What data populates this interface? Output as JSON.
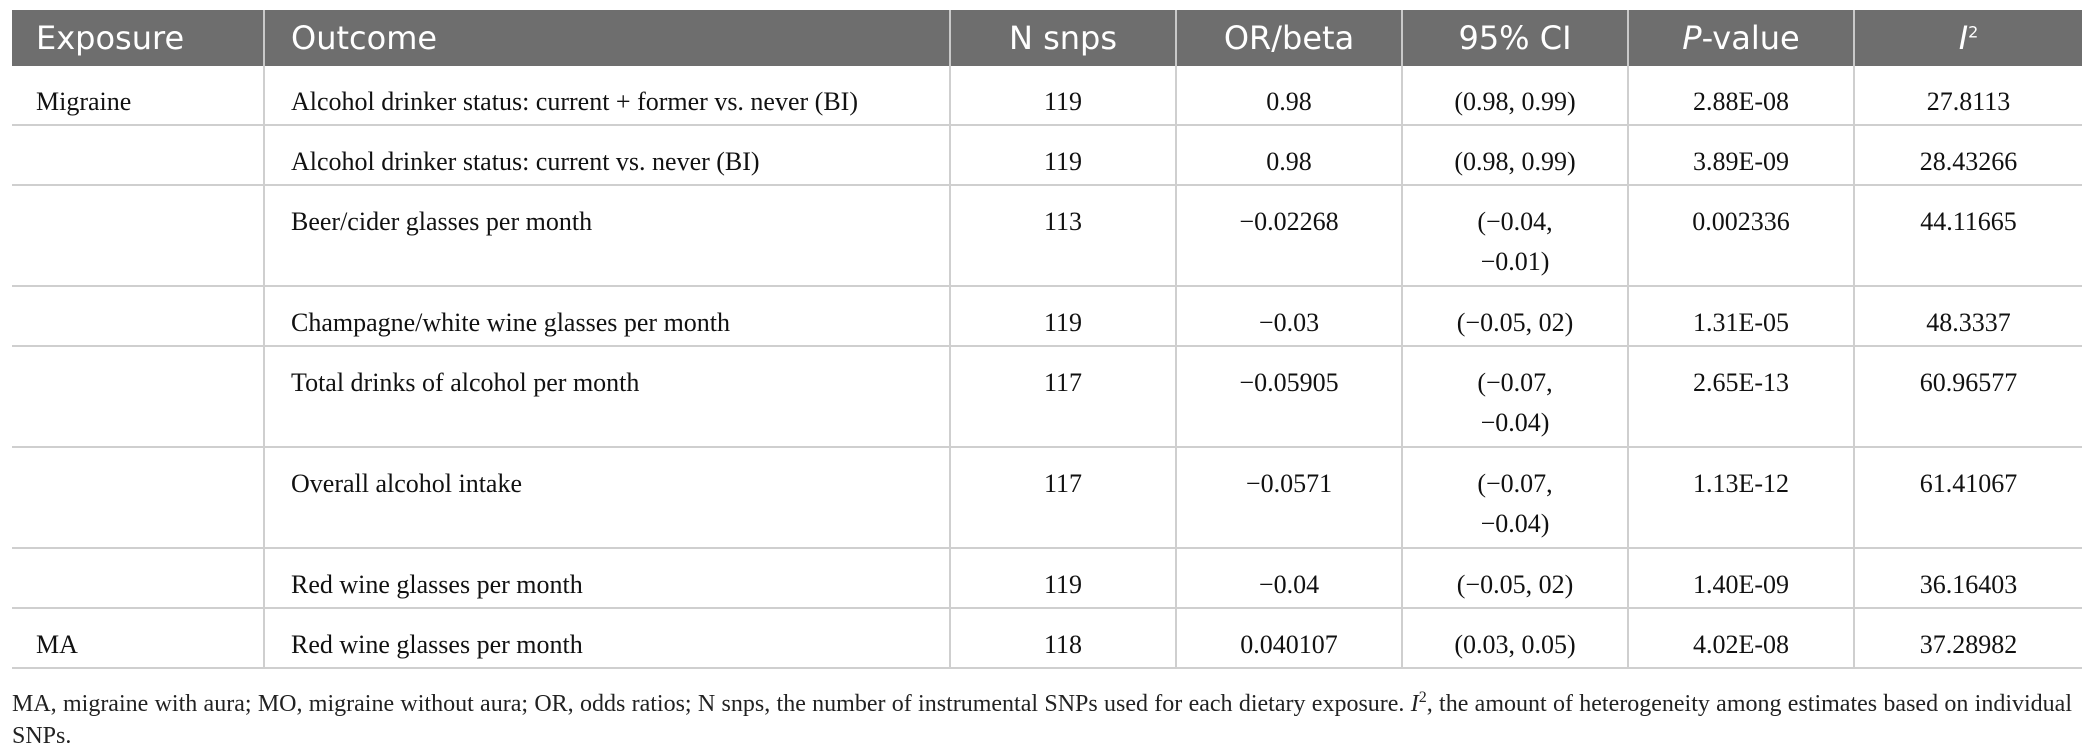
{
  "table": {
    "headers": {
      "exposure": "Exposure",
      "outcome": "Outcome",
      "nsnps": "N snps",
      "or_beta": "OR/beta",
      "ci": "95% CI",
      "p_italic": "P",
      "p_rest": "-value",
      "i2_base": "I",
      "i2_sup": "2"
    },
    "rows": [
      {
        "exposure": "Migraine",
        "outcome": "Alcohol drinker status: current + former vs. never (BI)",
        "nsnps": "119",
        "or_beta": "0.98",
        "ci_l1": "(0.98, 0.99)",
        "ci_l2": "",
        "p": "2.88E-08",
        "i2": "27.8113"
      },
      {
        "exposure": "",
        "outcome": "Alcohol drinker status: current vs. never (BI)",
        "nsnps": "119",
        "or_beta": "0.98",
        "ci_l1": "(0.98, 0.99)",
        "ci_l2": "",
        "p": "3.89E-09",
        "i2": "28.43266"
      },
      {
        "exposure": "",
        "outcome": "Beer/cider glasses per month",
        "nsnps": "113",
        "or_beta": "−0.02268",
        "ci_l1": "(−0.04,",
        "ci_l2": "−0.01)",
        "p": "0.002336",
        "i2": "44.11665"
      },
      {
        "exposure": "",
        "outcome": "Champagne/white wine glasses per month",
        "nsnps": "119",
        "or_beta": "−0.03",
        "ci_l1": "(−0.05, 02)",
        "ci_l2": "",
        "p": "1.31E-05",
        "i2": "48.3337"
      },
      {
        "exposure": "",
        "outcome": "Total drinks of alcohol per month",
        "nsnps": "117",
        "or_beta": "−0.05905",
        "ci_l1": "(−0.07,",
        "ci_l2": "−0.04)",
        "p": "2.65E-13",
        "i2": "60.96577"
      },
      {
        "exposure": "",
        "outcome": "Overall alcohol intake",
        "nsnps": "117",
        "or_beta": "−0.0571",
        "ci_l1": "(−0.07,",
        "ci_l2": "−0.04)",
        "p": "1.13E-12",
        "i2": "61.41067"
      },
      {
        "exposure": "",
        "outcome": "Red wine glasses per month",
        "nsnps": "119",
        "or_beta": "−0.04",
        "ci_l1": "(−0.05, 02)",
        "ci_l2": "",
        "p": "1.40E-09",
        "i2": "36.16403"
      },
      {
        "exposure": "MA",
        "outcome": "Red wine glasses per month",
        "nsnps": "118",
        "or_beta": "0.040107",
        "ci_l1": "(0.03, 0.05)",
        "ci_l2": "",
        "p": "4.02E-08",
        "i2": "37.28982"
      }
    ]
  },
  "footnote": {
    "part1": "MA, migraine with aura; MO, migraine without aura; OR, odds ratios; N snps, the number of instrumental SNPs used for each dietary exposure. ",
    "i_base": "I",
    "i_sup": "2",
    "part2": ", the amount of heterogeneity among estimates based on individual SNPs."
  }
}
